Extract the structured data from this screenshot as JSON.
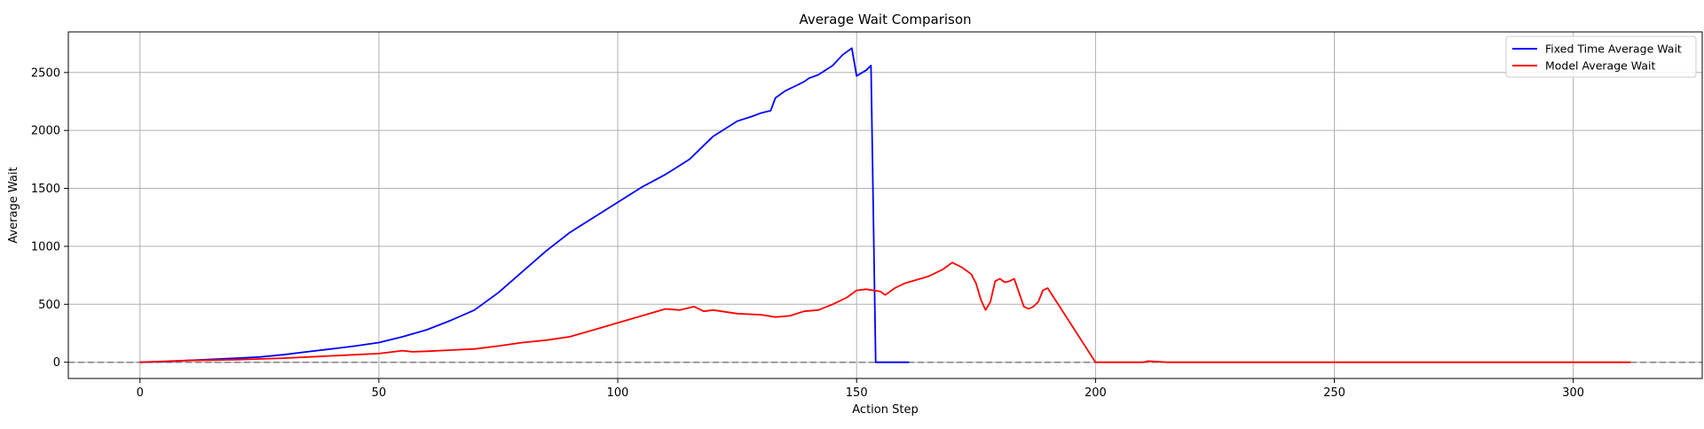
{
  "chart_data": {
    "type": "line",
    "title": "Average Wait Comparison",
    "xlabel": "Action Step",
    "ylabel": "Average Wait",
    "xlim": [
      -15,
      327
    ],
    "ylim": [
      -140,
      2850
    ],
    "xticks": [
      0,
      50,
      100,
      150,
      200,
      250,
      300
    ],
    "yticks": [
      0,
      500,
      1000,
      1500,
      2000,
      2500
    ],
    "grid": true,
    "legend_position": "top-right",
    "reference_line": {
      "y": 0,
      "style": "dashed",
      "color": "#808080"
    },
    "series": [
      {
        "name": "Fixed Time Average Wait",
        "color": "#0000ff",
        "x": [
          0,
          5,
          10,
          15,
          20,
          25,
          30,
          35,
          40,
          45,
          50,
          55,
          60,
          65,
          70,
          75,
          80,
          85,
          90,
          95,
          100,
          105,
          110,
          115,
          120,
          125,
          128,
          130,
          132,
          133,
          135,
          137,
          139,
          140,
          142,
          145,
          147,
          149,
          150,
          152,
          153,
          154,
          155,
          157,
          160,
          161
        ],
        "y": [
          0,
          5,
          15,
          25,
          35,
          45,
          65,
          90,
          115,
          140,
          170,
          220,
          280,
          360,
          450,
          600,
          780,
          960,
          1120,
          1250,
          1380,
          1510,
          1620,
          1750,
          1950,
          2080,
          2120,
          2150,
          2170,
          2280,
          2340,
          2380,
          2420,
          2450,
          2480,
          2560,
          2650,
          2710,
          2470,
          2520,
          2560,
          0,
          0,
          0,
          0,
          0
        ]
      },
      {
        "name": "Model Average Wait",
        "color": "#ff0000",
        "x": [
          0,
          5,
          10,
          15,
          20,
          25,
          30,
          35,
          40,
          45,
          50,
          55,
          57,
          60,
          65,
          70,
          75,
          80,
          85,
          90,
          95,
          100,
          105,
          110,
          113,
          116,
          118,
          120,
          125,
          130,
          133,
          136,
          139,
          142,
          145,
          148,
          150,
          152,
          155,
          156,
          158,
          160,
          165,
          168,
          170,
          172,
          174,
          175,
          176,
          177,
          178,
          179,
          180,
          181,
          182,
          183,
          185,
          186,
          187,
          188,
          189,
          190,
          200,
          205,
          210,
          211,
          215,
          250,
          300,
          312
        ],
        "y": [
          0,
          8,
          15,
          18,
          22,
          28,
          35,
          45,
          55,
          65,
          75,
          100,
          90,
          95,
          105,
          115,
          140,
          170,
          190,
          220,
          280,
          340,
          400,
          460,
          450,
          480,
          440,
          450,
          420,
          410,
          390,
          400,
          440,
          450,
          500,
          560,
          620,
          630,
          610,
          580,
          640,
          680,
          740,
          800,
          860,
          820,
          760,
          680,
          540,
          450,
          520,
          700,
          720,
          690,
          700,
          720,
          480,
          460,
          480,
          520,
          620,
          640,
          0,
          0,
          0,
          10,
          0,
          0,
          0,
          0
        ]
      }
    ]
  }
}
